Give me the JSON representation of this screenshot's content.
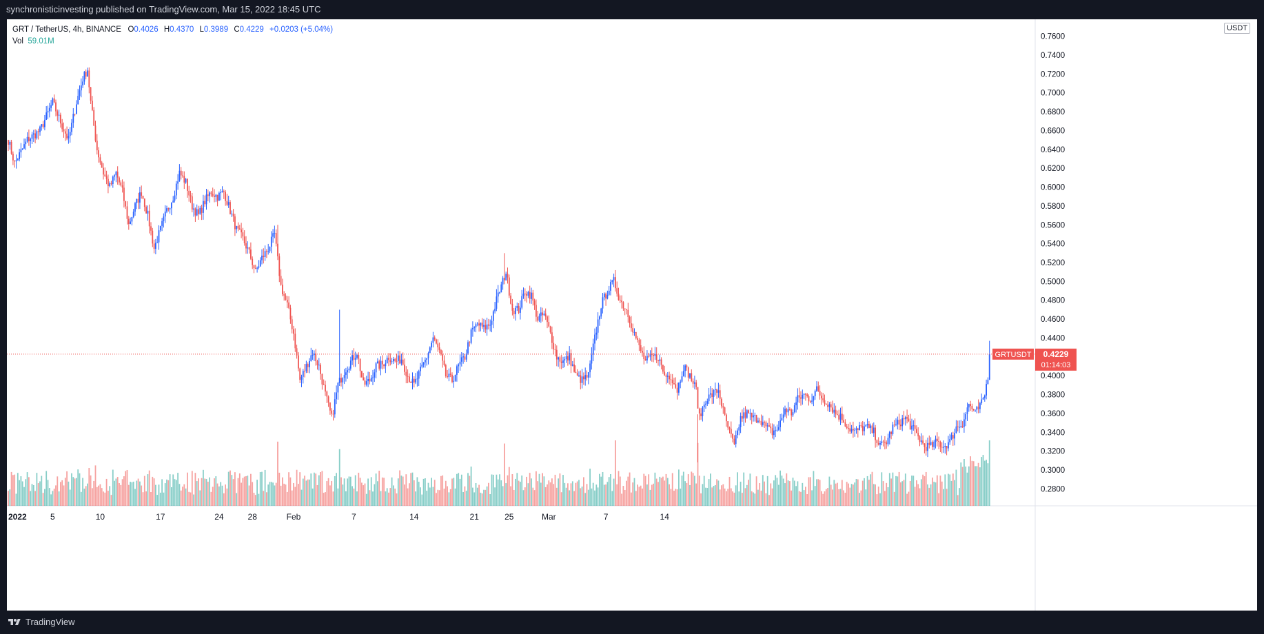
{
  "header": {
    "publisher_line": "synchronisticinvesting published on TradingView.com, Mar 15, 2022 18:45 UTC"
  },
  "legend": {
    "symbol": "GRT / TetherUS, 4h, BINANCE",
    "o_label": "O",
    "o_value": "0.4026",
    "h_label": "H",
    "h_value": "0.4370",
    "l_label": "L",
    "l_value": "0.3989",
    "c_label": "C",
    "c_value": "0.4229",
    "change": "+0.0203 (+5.04%)",
    "vol_label": "Vol",
    "vol_value": "59.01M"
  },
  "price_scale": {
    "unit": "USDT",
    "ticks": [
      "0.7600",
      "0.7400",
      "0.7200",
      "0.7000",
      "0.6800",
      "0.6600",
      "0.6400",
      "0.6200",
      "0.6000",
      "0.5800",
      "0.5600",
      "0.5400",
      "0.5200",
      "0.5000",
      "0.4800",
      "0.4600",
      "0.4400",
      "0.4000",
      "0.3800",
      "0.3600",
      "0.3400",
      "0.3200",
      "0.3000",
      "0.2800"
    ],
    "last_label": "GRTUSDT",
    "last_price": "0.4229",
    "countdown": "01:14:03"
  },
  "time_scale": {
    "labels": [
      "2022",
      "5",
      "10",
      "17",
      "24",
      "28",
      "Feb",
      "7",
      "14",
      "21",
      "25",
      "Mar",
      "7",
      "14"
    ]
  },
  "footer": {
    "brand": "TradingView"
  },
  "colors": {
    "up": "#2962ff",
    "down": "#ef5350",
    "vol_up": "#26a69a",
    "vol_down": "#ef5350",
    "bg": "#131722"
  },
  "chart_data": {
    "type": "candlestick",
    "title": "GRT / TetherUS, 4h, BINANCE",
    "ylim": [
      0.262,
      0.778
    ],
    "last_price": 0.4229,
    "anchors": [
      {
        "t": 0,
        "p": 0.65
      },
      {
        "t": 4,
        "p": 0.625
      },
      {
        "t": 12,
        "p": 0.65
      },
      {
        "t": 20,
        "p": 0.66
      },
      {
        "t": 28,
        "p": 0.69
      },
      {
        "t": 34,
        "p": 0.665
      },
      {
        "t": 38,
        "p": 0.65
      },
      {
        "t": 43,
        "p": 0.69
      },
      {
        "t": 47,
        "p": 0.715
      },
      {
        "t": 50,
        "p": 0.725
      },
      {
        "t": 52,
        "p": 0.69
      },
      {
        "t": 56,
        "p": 0.64
      },
      {
        "t": 60,
        "p": 0.615
      },
      {
        "t": 64,
        "p": 0.6
      },
      {
        "t": 68,
        "p": 0.615
      },
      {
        "t": 72,
        "p": 0.595
      },
      {
        "t": 76,
        "p": 0.56
      },
      {
        "t": 80,
        "p": 0.58
      },
      {
        "t": 84,
        "p": 0.595
      },
      {
        "t": 88,
        "p": 0.57
      },
      {
        "t": 92,
        "p": 0.535
      },
      {
        "t": 96,
        "p": 0.555
      },
      {
        "t": 100,
        "p": 0.575
      },
      {
        "t": 104,
        "p": 0.59
      },
      {
        "t": 108,
        "p": 0.615
      },
      {
        "t": 112,
        "p": 0.605
      },
      {
        "t": 116,
        "p": 0.58
      },
      {
        "t": 120,
        "p": 0.57
      },
      {
        "t": 124,
        "p": 0.585
      },
      {
        "t": 128,
        "p": 0.595
      },
      {
        "t": 132,
        "p": 0.59
      },
      {
        "t": 136,
        "p": 0.595
      },
      {
        "t": 140,
        "p": 0.575
      },
      {
        "t": 144,
        "p": 0.555
      },
      {
        "t": 148,
        "p": 0.545
      },
      {
        "t": 152,
        "p": 0.53
      },
      {
        "t": 156,
        "p": 0.51
      },
      {
        "t": 160,
        "p": 0.525
      },
      {
        "t": 164,
        "p": 0.535
      },
      {
        "t": 168,
        "p": 0.55
      },
      {
        "t": 172,
        "p": 0.495
      },
      {
        "t": 176,
        "p": 0.475
      },
      {
        "t": 180,
        "p": 0.445
      },
      {
        "t": 184,
        "p": 0.395
      },
      {
        "t": 188,
        "p": 0.41
      },
      {
        "t": 192,
        "p": 0.425
      },
      {
        "t": 196,
        "p": 0.41
      },
      {
        "t": 200,
        "p": 0.38
      },
      {
        "t": 204,
        "p": 0.355
      },
      {
        "t": 208,
        "p": 0.39
      },
      {
        "t": 212,
        "p": 0.405
      },
      {
        "t": 216,
        "p": 0.415
      },
      {
        "t": 220,
        "p": 0.425
      },
      {
        "t": 224,
        "p": 0.39
      },
      {
        "t": 228,
        "p": 0.395
      },
      {
        "t": 232,
        "p": 0.41
      },
      {
        "t": 236,
        "p": 0.412
      },
      {
        "t": 240,
        "p": 0.42
      },
      {
        "t": 244,
        "p": 0.415
      },
      {
        "t": 248,
        "p": 0.418
      },
      {
        "t": 252,
        "p": 0.4
      },
      {
        "t": 256,
        "p": 0.39
      },
      {
        "t": 260,
        "p": 0.405
      },
      {
        "t": 264,
        "p": 0.42
      },
      {
        "t": 268,
        "p": 0.44
      },
      {
        "t": 272,
        "p": 0.425
      },
      {
        "t": 276,
        "p": 0.4
      },
      {
        "t": 280,
        "p": 0.395
      },
      {
        "t": 284,
        "p": 0.41
      },
      {
        "t": 288,
        "p": 0.42
      },
      {
        "t": 292,
        "p": 0.445
      },
      {
        "t": 296,
        "p": 0.455
      },
      {
        "t": 300,
        "p": 0.45
      },
      {
        "t": 304,
        "p": 0.455
      },
      {
        "t": 308,
        "p": 0.48
      },
      {
        "t": 312,
        "p": 0.5
      },
      {
        "t": 314,
        "p": 0.51
      },
      {
        "t": 318,
        "p": 0.47
      },
      {
        "t": 322,
        "p": 0.47
      },
      {
        "t": 326,
        "p": 0.49
      },
      {
        "t": 330,
        "p": 0.485
      },
      {
        "t": 334,
        "p": 0.46
      },
      {
        "t": 338,
        "p": 0.465
      },
      {
        "t": 342,
        "p": 0.445
      },
      {
        "t": 346,
        "p": 0.42
      },
      {
        "t": 350,
        "p": 0.415
      },
      {
        "t": 354,
        "p": 0.42
      },
      {
        "t": 358,
        "p": 0.4
      },
      {
        "t": 362,
        "p": 0.395
      },
      {
        "t": 366,
        "p": 0.4
      },
      {
        "t": 370,
        "p": 0.44
      },
      {
        "t": 374,
        "p": 0.475
      },
      {
        "t": 378,
        "p": 0.49
      },
      {
        "t": 382,
        "p": 0.5
      },
      {
        "t": 386,
        "p": 0.48
      },
      {
        "t": 390,
        "p": 0.47
      },
      {
        "t": 394,
        "p": 0.45
      },
      {
        "t": 398,
        "p": 0.43
      },
      {
        "t": 402,
        "p": 0.415
      },
      {
        "t": 406,
        "p": 0.42
      },
      {
        "t": 410,
        "p": 0.42
      },
      {
        "t": 414,
        "p": 0.4
      },
      {
        "t": 418,
        "p": 0.4
      },
      {
        "t": 422,
        "p": 0.385
      },
      {
        "t": 426,
        "p": 0.41
      },
      {
        "t": 430,
        "p": 0.4
      },
      {
        "t": 434,
        "p": 0.385
      },
      {
        "t": 436,
        "p": 0.355
      },
      {
        "t": 440,
        "p": 0.375
      },
      {
        "t": 444,
        "p": 0.38
      },
      {
        "t": 448,
        "p": 0.385
      },
      {
        "t": 452,
        "p": 0.355
      },
      {
        "t": 456,
        "p": 0.335
      },
      {
        "t": 458,
        "p": 0.325
      },
      {
        "t": 462,
        "p": 0.355
      },
      {
        "t": 466,
        "p": 0.36
      },
      {
        "t": 470,
        "p": 0.355
      },
      {
        "t": 474,
        "p": 0.355
      },
      {
        "t": 478,
        "p": 0.345
      },
      {
        "t": 482,
        "p": 0.34
      },
      {
        "t": 486,
        "p": 0.345
      },
      {
        "t": 490,
        "p": 0.365
      },
      {
        "t": 494,
        "p": 0.36
      },
      {
        "t": 498,
        "p": 0.375
      },
      {
        "t": 502,
        "p": 0.38
      },
      {
        "t": 506,
        "p": 0.375
      },
      {
        "t": 510,
        "p": 0.385
      },
      {
        "t": 514,
        "p": 0.375
      },
      {
        "t": 518,
        "p": 0.37
      },
      {
        "t": 522,
        "p": 0.36
      },
      {
        "t": 526,
        "p": 0.355
      },
      {
        "t": 530,
        "p": 0.345
      },
      {
        "t": 534,
        "p": 0.34
      },
      {
        "t": 538,
        "p": 0.345
      },
      {
        "t": 542,
        "p": 0.345
      },
      {
        "t": 546,
        "p": 0.34
      },
      {
        "t": 550,
        "p": 0.325
      },
      {
        "t": 554,
        "p": 0.33
      },
      {
        "t": 558,
        "p": 0.345
      },
      {
        "t": 562,
        "p": 0.35
      },
      {
        "t": 566,
        "p": 0.355
      },
      {
        "t": 570,
        "p": 0.345
      },
      {
        "t": 574,
        "p": 0.335
      },
      {
        "t": 578,
        "p": 0.325
      },
      {
        "t": 582,
        "p": 0.325
      },
      {
        "t": 586,
        "p": 0.33
      },
      {
        "t": 590,
        "p": 0.325
      },
      {
        "t": 594,
        "p": 0.33
      },
      {
        "t": 598,
        "p": 0.345
      },
      {
        "t": 602,
        "p": 0.35
      },
      {
        "t": 606,
        "p": 0.37
      },
      {
        "t": 610,
        "p": 0.36
      },
      {
        "t": 614,
        "p": 0.37
      },
      {
        "t": 616,
        "p": 0.38
      },
      {
        "t": 618,
        "p": 0.4
      },
      {
        "t": 619,
        "p": 0.4229
      }
    ],
    "spikes": [
      {
        "t": 170,
        "h": 0.56
      },
      {
        "t": 209,
        "h": 0.47
      },
      {
        "t": 313,
        "h": 0.53
      },
      {
        "t": 383,
        "h": 0.512
      },
      {
        "t": 435,
        "h": 0.308
      },
      {
        "t": 619,
        "h": 0.437,
        "l": 0.3989
      }
    ],
    "volume": {
      "max_label": "59.01M",
      "last": 59.01
    }
  }
}
